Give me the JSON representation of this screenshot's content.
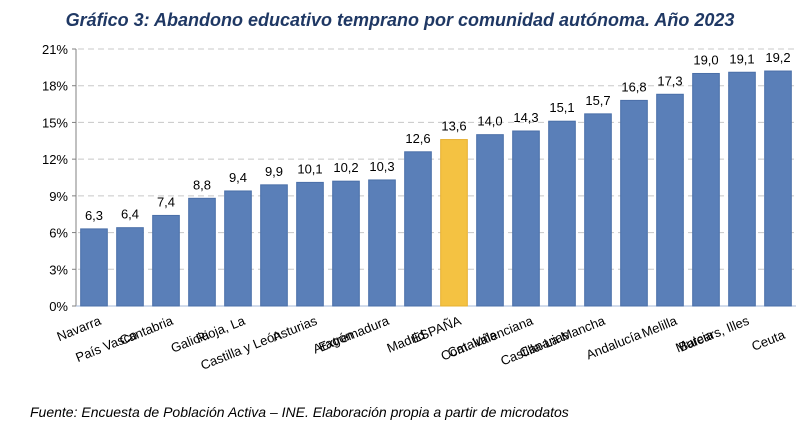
{
  "chart_data": {
    "type": "bar",
    "title": "Gráfico 3: Abandono educativo temprano por comunidad autónoma. Año 2023",
    "xlabel": "",
    "ylabel": "",
    "ylim": [
      0,
      21
    ],
    "yticks": [
      0,
      3,
      6,
      9,
      12,
      15,
      18,
      21
    ],
    "ytick_labels": [
      "0%",
      "3%",
      "6%",
      "9%",
      "12%",
      "15%",
      "18%",
      "21%"
    ],
    "grid": "horizontal-dashed",
    "categories": [
      "Navarra",
      "País Vasco",
      "Cantabria",
      "Galicia",
      "Rioja, La",
      "Castilla y León",
      "Asturias",
      "Aragón",
      "Extremadura",
      "Madrid",
      "ESPAÑA",
      "Cataluña",
      "Com. Valenciana",
      "Canarias",
      "Castilla-La Mancha",
      "Andalucía",
      "Melilla",
      "Murcia",
      "Balears, Illes",
      "Ceuta"
    ],
    "values": [
      6.3,
      6.4,
      7.4,
      8.8,
      9.4,
      9.9,
      10.1,
      10.2,
      10.3,
      12.6,
      13.6,
      14.0,
      14.3,
      15.1,
      15.7,
      16.8,
      17.3,
      19.0,
      19.1,
      19.2
    ],
    "value_labels": [
      "6,3",
      "6,4",
      "7,4",
      "8,8",
      "9,4",
      "9,9",
      "10,1",
      "10,2",
      "10,3",
      "12,6",
      "13,6",
      "14,0",
      "14,3",
      "15,1",
      "15,7",
      "16,8",
      "17,3",
      "19,0",
      "19,1",
      "19,2"
    ],
    "highlight_category": "ESPAÑA",
    "colors": {
      "bar": "#5a7fb8",
      "highlight": "#f4c242",
      "grid": "#c8c8c8",
      "title": "#1f3864"
    }
  },
  "source": "Fuente: Encuesta de Población Activa – INE. Elaboración propia a partir de microdatos"
}
